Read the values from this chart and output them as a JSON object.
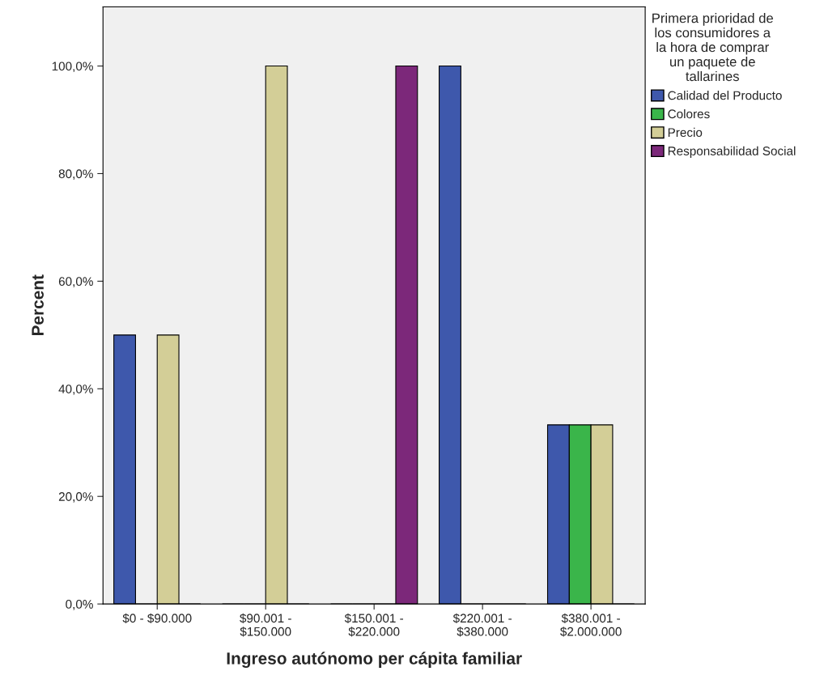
{
  "chart_data": {
    "type": "bar",
    "xlabel": "Ingreso autónomo per cápita familiar",
    "ylabel": "Percent",
    "legend_title": "Primera prioridad de\nlos consumidores a\nla hora de comprar\nun paquete de\ntallarines",
    "categories": [
      "$0 - $90.000",
      "$90.001 -\n$150.000",
      "$150.001 -\n$220.000",
      "$220.001 -\n$380.000",
      "$380.001 -\n$2.000.000"
    ],
    "series": [
      {
        "name": "Calidad del Producto",
        "color": "#3e58ac",
        "values": [
          50,
          0,
          0,
          100,
          33.3
        ]
      },
      {
        "name": "Colores",
        "color": "#3ab54a",
        "values": [
          0,
          0,
          0,
          0,
          33.3
        ]
      },
      {
        "name": "Precio",
        "color": "#d3ce97",
        "values": [
          50,
          100,
          0,
          0,
          33.3
        ]
      },
      {
        "name": "Responsabilidad Social",
        "color": "#7c287a",
        "values": [
          0,
          0,
          100,
          0,
          0
        ]
      }
    ],
    "ylim": [
      0,
      111
    ],
    "yticks": [
      {
        "value": 0,
        "label": "0,0%"
      },
      {
        "value": 20,
        "label": "20,0%"
      },
      {
        "value": 40,
        "label": "40,0%"
      },
      {
        "value": 60,
        "label": "60,0%"
      },
      {
        "value": 80,
        "label": "80,0%"
      },
      {
        "value": 100,
        "label": "100,0%"
      }
    ],
    "grid": false,
    "legend": "top right"
  }
}
